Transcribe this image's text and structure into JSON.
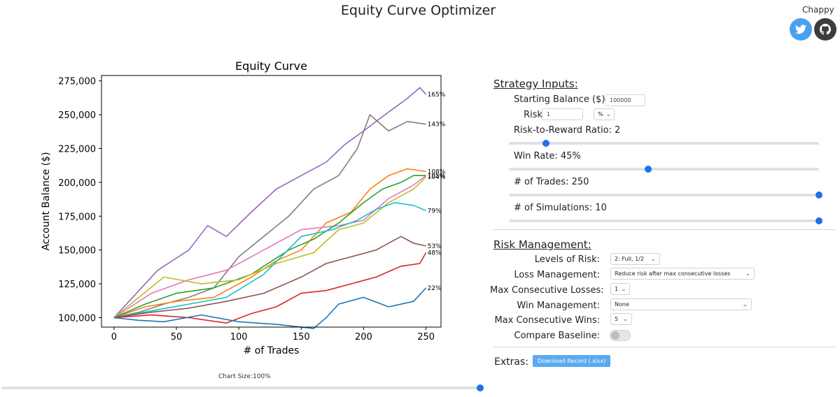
{
  "header": {
    "title": "Equity Curve Optimizer",
    "author": "Chappy",
    "twitter_icon": "twitter-icon",
    "github_icon": "github-icon"
  },
  "chart_data": {
    "type": "line",
    "title": "Equity Curve",
    "xlabel": "# of Trades",
    "ylabel": "Account Balance ($)",
    "xlim": [
      -10,
      262
    ],
    "ylim": [
      93000,
      279000
    ],
    "xticks": [
      0,
      50,
      100,
      150,
      200,
      250
    ],
    "yticks": [
      100000,
      125000,
      150000,
      175000,
      200000,
      225000,
      250000,
      275000
    ],
    "ytick_labels": [
      "100,000",
      "125,000",
      "150,000",
      "175,000",
      "200,000",
      "225,000",
      "250,000",
      "275,000"
    ],
    "grid": false,
    "series": [
      {
        "color": "#9467bd",
        "end_label": "165%",
        "x": [
          0,
          15,
          35,
          60,
          75,
          90,
          110,
          130,
          150,
          170,
          185,
          200,
          220,
          235,
          245,
          250
        ],
        "y": [
          100000,
          115000,
          135000,
          150000,
          168000,
          160000,
          178000,
          195000,
          205000,
          215000,
          228000,
          238000,
          252000,
          262000,
          270000,
          265000
        ]
      },
      {
        "color": "#7f7f7f",
        "end_label": "143%",
        "x": [
          0,
          20,
          40,
          60,
          80,
          100,
          120,
          140,
          160,
          180,
          195,
          205,
          220,
          235,
          250
        ],
        "y": [
          100000,
          104000,
          110000,
          115000,
          122000,
          145000,
          160000,
          175000,
          195000,
          205000,
          225000,
          250000,
          238000,
          245000,
          243000
        ]
      },
      {
        "color": "#ff7f0e",
        "end_label": "108%",
        "x": [
          0,
          25,
          50,
          80,
          110,
          130,
          150,
          170,
          190,
          205,
          220,
          235,
          250
        ],
        "y": [
          100000,
          108000,
          112000,
          115000,
          130000,
          142000,
          150000,
          170000,
          178000,
          195000,
          205000,
          210000,
          208000
        ]
      },
      {
        "color": "#e377c2",
        "end_label": "",
        "x": [
          0,
          30,
          60,
          90,
          120,
          150,
          180,
          200,
          220,
          240,
          250
        ],
        "y": [
          100000,
          118000,
          128000,
          135000,
          150000,
          165000,
          168000,
          172000,
          188000,
          198000,
          205000
        ]
      },
      {
        "color": "#2ca02c",
        "end_label": "105%",
        "x": [
          0,
          25,
          50,
          80,
          110,
          140,
          160,
          180,
          200,
          215,
          230,
          240,
          250
        ],
        "y": [
          100000,
          110000,
          118000,
          122000,
          132000,
          150000,
          158000,
          170000,
          185000,
          195000,
          200000,
          205000,
          205000
        ]
      },
      {
        "color": "#bcbd22",
        "end_label": "104%",
        "x": [
          0,
          20,
          40,
          70,
          100,
          130,
          160,
          180,
          200,
          220,
          240,
          250
        ],
        "y": [
          100000,
          115000,
          130000,
          125000,
          128000,
          140000,
          148000,
          165000,
          170000,
          185000,
          195000,
          204000
        ]
      },
      {
        "color": "#17becf",
        "end_label": "79%",
        "x": [
          0,
          30,
          60,
          90,
          120,
          150,
          175,
          195,
          210,
          225,
          240,
          250
        ],
        "y": [
          100000,
          105000,
          110000,
          115000,
          132000,
          160000,
          165000,
          172000,
          180000,
          185000,
          183000,
          179000
        ]
      },
      {
        "color": "#8c564b",
        "end_label": "53%",
        "x": [
          0,
          30,
          60,
          90,
          120,
          150,
          170,
          190,
          210,
          230,
          240,
          250
        ],
        "y": [
          100000,
          104000,
          107000,
          112000,
          118000,
          130000,
          140000,
          145000,
          150000,
          160000,
          155000,
          153000
        ]
      },
      {
        "color": "#d62728",
        "end_label": "48%",
        "x": [
          0,
          30,
          60,
          90,
          110,
          130,
          150,
          170,
          190,
          210,
          230,
          245,
          250
        ],
        "y": [
          100000,
          102000,
          100000,
          96000,
          103000,
          108000,
          118000,
          120000,
          125000,
          130000,
          138000,
          140000,
          148000
        ]
      },
      {
        "color": "#1f77b4",
        "end_label": "22%",
        "x": [
          0,
          20,
          40,
          70,
          100,
          130,
          160,
          170,
          180,
          200,
          220,
          240,
          250
        ],
        "y": [
          100000,
          98000,
          97000,
          102000,
          97000,
          95000,
          92000,
          100000,
          110000,
          115000,
          108000,
          112000,
          122000
        ]
      }
    ]
  },
  "chart_size": {
    "label": "Chart Size:100%",
    "value": 100
  },
  "strategy": {
    "title": "Strategy Inputs:",
    "starting_balance_label": "Starting Balance ($):",
    "starting_balance_value": "100000",
    "risk_label": "Risk:",
    "risk_value": "1",
    "risk_unit": "%",
    "rr_label": "Risk-to-Reward Ratio: 2",
    "rr_fraction": 0.12,
    "winrate_label": "Win Rate: 45%",
    "winrate_fraction": 0.45,
    "trades_label": "# of Trades: 250",
    "trades_fraction": 1.0,
    "sims_label": "# of Simulations: 10",
    "sims_fraction": 1.0
  },
  "risk_mgmt": {
    "title": "Risk Management:",
    "levels_label": "Levels of Risk:",
    "levels_value": "2: Full, 1/2",
    "loss_label": "Loss Management:",
    "loss_value": "Reduce risk after max consecutive losses",
    "max_losses_label": "Max Consecutive Losses:",
    "max_losses_value": "1",
    "win_label": "Win Management:",
    "win_value": "None",
    "max_wins_label": "Max Consecutive Wins:",
    "max_wins_value": "5",
    "baseline_label": "Compare Baseline:"
  },
  "extras": {
    "label": "Extras:",
    "download_label": "Download Record (.xlsx)"
  }
}
